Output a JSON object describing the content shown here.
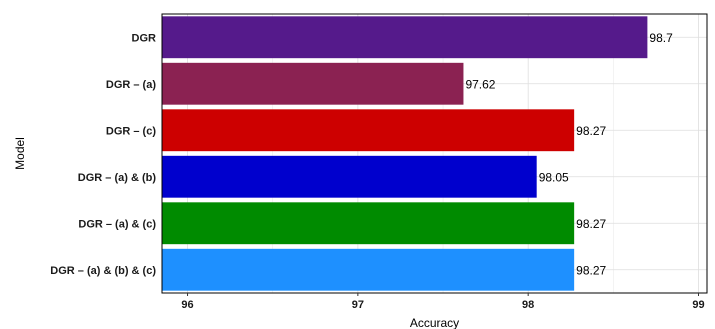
{
  "chart_data": {
    "type": "bar",
    "orientation": "horizontal",
    "title": "",
    "xlabel": "Accuracy",
    "ylabel": "Model",
    "xlim": [
      95.85,
      99.05
    ],
    "x_ticks": [
      96,
      97,
      98,
      99
    ],
    "grid": true,
    "categories": [
      "DGR",
      "DGR – (a)",
      "DGR – (c)",
      "DGR – (a) & (b)",
      "DGR – (a) & (c)",
      "DGR – (a) & (b) & (c)"
    ],
    "values": [
      98.7,
      97.62,
      98.27,
      98.05,
      98.27,
      98.27
    ],
    "value_labels": [
      "98.7",
      "97.62",
      "98.27",
      "98.05",
      "98.27",
      "98.27"
    ],
    "colors": [
      "#551a8b",
      "#8b2252",
      "#cd0000",
      "#0000cd",
      "#008b00",
      "#1e90ff"
    ]
  }
}
